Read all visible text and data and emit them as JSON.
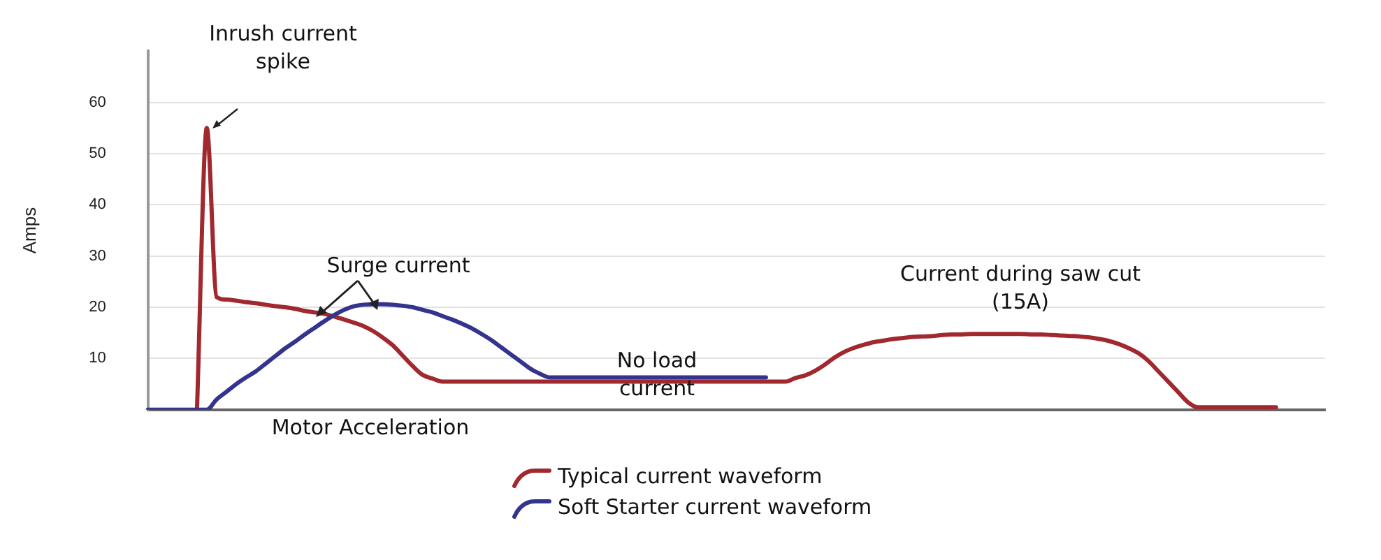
{
  "chart_data": {
    "type": "line",
    "ylabel": "Amps",
    "ylim": [
      0,
      70
    ],
    "yticks": [
      10,
      20,
      30,
      40,
      50,
      60
    ],
    "grid": "y",
    "legend": "bottom",
    "marker": "none",
    "line_style": "solid",
    "categories": [
      null,
      null,
      null,
      null,
      null,
      null,
      null,
      null,
      null,
      null,
      null,
      null,
      null,
      null,
      null,
      null,
      null,
      null,
      null,
      null,
      null,
      null,
      null,
      null,
      null,
      null,
      null,
      null,
      null,
      null,
      null,
      null,
      null,
      null,
      null,
      null,
      null,
      null,
      null,
      null,
      null,
      null,
      null,
      null,
      null,
      null,
      null,
      null,
      null,
      null,
      null,
      null,
      null,
      null,
      null,
      null,
      null,
      null,
      null,
      null,
      null,
      null,
      null,
      null,
      null,
      null,
      null,
      null,
      null,
      null,
      null,
      null,
      null,
      null,
      null,
      null,
      null,
      null,
      null,
      null,
      null,
      null,
      null,
      null,
      null,
      null,
      null,
      null,
      null,
      null,
      null,
      null,
      null,
      null,
      null,
      null,
      null,
      null,
      null,
      null,
      null,
      null,
      null,
      null,
      null,
      null,
      null,
      null,
      null,
      null,
      null,
      null,
      null,
      null,
      null,
      null,
      null,
      null,
      null,
      null,
      null
    ],
    "series": [
      {
        "name": "Typical current waveform",
        "color": "#a0282e",
        "values": [
          null,
          null,
          null,
          null,
          null,
          0,
          55,
          22,
          21.5,
          21.3,
          21,
          20.8,
          20.5,
          20.2,
          20,
          19.7,
          19.3,
          19,
          18.7,
          18.2,
          17.6,
          17,
          16.3,
          15.3,
          14,
          12.5,
          10.5,
          8.5,
          6.8,
          6.1,
          5.5,
          5.5,
          5.5,
          5.5,
          5.5,
          5.5,
          5.5,
          5.5,
          5.5,
          5.5,
          5.5,
          5.5,
          5.5,
          5.5,
          5.5,
          5.5,
          5.5,
          5.5,
          5.5,
          5.5,
          5.5,
          5.5,
          5.5,
          5.5,
          5.5,
          5.5,
          5.5,
          5.5,
          5.5,
          5.5,
          5.5,
          5.5,
          5.5,
          5.5,
          5.5,
          5.5,
          6.2,
          6.7,
          7.6,
          8.8,
          10.2,
          11.3,
          12.1,
          12.7,
          13.2,
          13.5,
          13.8,
          14,
          14.2,
          14.3,
          14.4,
          14.6,
          14.7,
          14.7,
          14.8,
          14.8,
          14.8,
          14.8,
          14.8,
          14.8,
          14.7,
          14.7,
          14.6,
          14.5,
          14.4,
          14.3,
          14.1,
          13.8,
          13.4,
          12.8,
          12,
          11,
          9.5,
          7.5,
          5.5,
          3.5,
          1.5,
          0.5,
          0.5,
          0.5,
          0.5,
          0.5,
          0.5,
          0.5,
          0.5,
          0.5,
          null,
          null,
          null,
          null,
          null
        ]
      },
      {
        "name": "Soft Starter current waveform",
        "color": "#34348f",
        "values": [
          0,
          0,
          0,
          0,
          0,
          0,
          0,
          2,
          3.5,
          5,
          6.3,
          7.5,
          9,
          10.5,
          12,
          13.3,
          14.7,
          16,
          17.3,
          18.5,
          19.5,
          20.2,
          20.5,
          20.6,
          20.6,
          20.5,
          20.3,
          20,
          19.5,
          19,
          18.3,
          17.6,
          16.8,
          15.9,
          14.8,
          13.6,
          12.2,
          10.8,
          9.4,
          8,
          7,
          6.3,
          6.3,
          6.3,
          6.3,
          6.3,
          6.3,
          6.3,
          6.3,
          6.3,
          6.3,
          6.3,
          6.3,
          6.3,
          6.3,
          6.3,
          6.3,
          6.3,
          6.3,
          6.3,
          6.3,
          6.3,
          6.3,
          6.3,
          null,
          null,
          null,
          null,
          null,
          null,
          null,
          null,
          null,
          null,
          null,
          null,
          null,
          null,
          null,
          null,
          null,
          null,
          null,
          null,
          null,
          null,
          null,
          null,
          null,
          null,
          null,
          null,
          null,
          null,
          null,
          null,
          null,
          null,
          null,
          null,
          null,
          null,
          null,
          null,
          null,
          null,
          null,
          null,
          null,
          null,
          null,
          null,
          null,
          null,
          null,
          null,
          null,
          null,
          null,
          null,
          null
        ]
      }
    ],
    "annotations": [
      "Inrush current spike",
      "Surge current",
      "Motor Acceleration",
      "No load current",
      "Current during saw cut (15A)"
    ]
  }
}
